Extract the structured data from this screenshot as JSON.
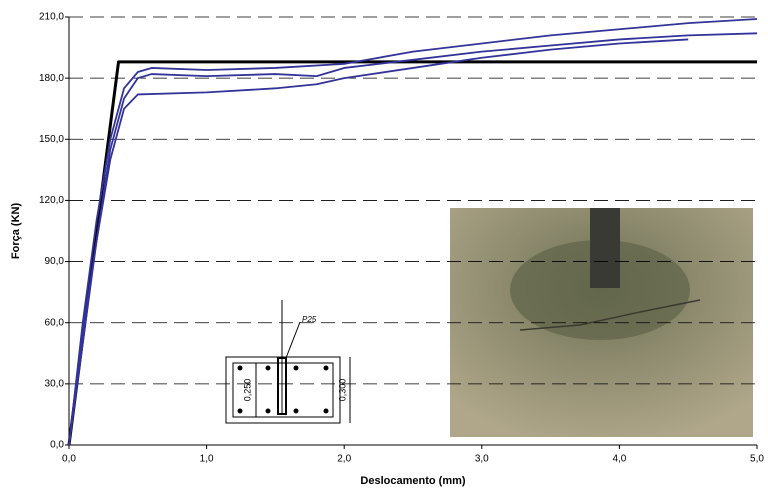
{
  "chart_data": {
    "type": "line",
    "x_label": "Deslocamento (mm)",
    "y_label": "Força (KN)",
    "xlim": [
      0,
      5
    ],
    "ylim": [
      0,
      210
    ],
    "xticks": [
      {
        "value": 0,
        "label": "0,0"
      },
      {
        "value": 1,
        "label": "1,0"
      },
      {
        "value": 2,
        "label": "2,0"
      },
      {
        "value": 3,
        "label": "3,0"
      },
      {
        "value": 4,
        "label": "4,0"
      },
      {
        "value": 5,
        "label": "5,0"
      }
    ],
    "yticks": [
      {
        "value": 0,
        "label": "0,0"
      },
      {
        "value": 30,
        "label": "30,0"
      },
      {
        "value": 60,
        "label": "60,0"
      },
      {
        "value": 90,
        "label": "90,0"
      },
      {
        "value": 120,
        "label": "120,0"
      },
      {
        "value": 150,
        "label": "150,0"
      },
      {
        "value": 180,
        "label": "180,0"
      },
      {
        "value": 210,
        "label": "210,0"
      }
    ],
    "grid": true,
    "annotations": [
      "P25",
      "0,250",
      "0,300"
    ],
    "series": [
      {
        "color": "#000000",
        "x": [
          0,
          0.36,
          5
        ],
        "values": [
          0,
          188,
          188
        ]
      },
      {
        "color": "#33339a",
        "x": [
          0,
          0.1,
          0.2,
          0.3,
          0.4,
          0.5,
          0.6,
          1.0,
          1.5,
          2.0,
          2.5,
          3.0,
          3.5,
          4.0,
          4.5,
          5.0
        ],
        "values": [
          0,
          60,
          110,
          150,
          175,
          183,
          185,
          184,
          185,
          187,
          193,
          197,
          201,
          204,
          207,
          209
        ]
      },
      {
        "color": "#33339a",
        "x": [
          0,
          0.1,
          0.2,
          0.3,
          0.4,
          0.5,
          0.6,
          1.0,
          1.5,
          1.8,
          2.0,
          2.5,
          3.0,
          3.5,
          4.0,
          4.5,
          5.0
        ],
        "values": [
          0,
          55,
          100,
          145,
          170,
          180,
          182,
          181,
          182,
          181,
          185,
          189,
          193,
          196,
          199,
          201,
          202
        ]
      },
      {
        "color": "#33339a",
        "x": [
          0,
          0.1,
          0.2,
          0.3,
          0.4,
          0.5,
          1.0,
          1.5,
          1.8,
          2.0,
          2.5,
          3.0,
          3.5,
          4.0,
          4.5
        ],
        "values": [
          0,
          50,
          100,
          140,
          165,
          172,
          173,
          175,
          177,
          180,
          185,
          190,
          194,
          197,
          199
        ]
      }
    ]
  }
}
